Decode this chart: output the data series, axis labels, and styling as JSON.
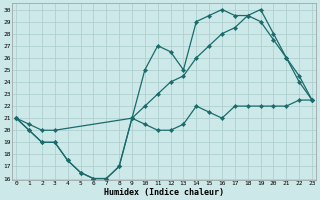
{
  "bg_color": "#cce8e8",
  "grid_color": "#aacccc",
  "line_color": "#1a6b6b",
  "xlabel": "Humidex (Indice chaleur)",
  "xlim": [
    0,
    23
  ],
  "ylim": [
    16,
    30
  ],
  "xticks": [
    0,
    1,
    2,
    3,
    4,
    5,
    6,
    7,
    8,
    9,
    10,
    11,
    12,
    13,
    14,
    15,
    16,
    17,
    18,
    19,
    20,
    21,
    22,
    23
  ],
  "yticks": [
    16,
    17,
    18,
    19,
    20,
    21,
    22,
    23,
    24,
    25,
    26,
    27,
    28,
    29,
    30
  ],
  "line1_x": [
    0,
    1,
    2,
    3,
    4,
    5,
    6,
    7,
    8,
    9,
    10,
    11,
    12,
    13,
    14,
    15,
    16,
    17,
    18,
    19,
    20,
    21,
    22,
    23
  ],
  "line1_y": [
    21,
    20,
    19,
    19,
    17.5,
    16.5,
    16,
    16,
    17,
    21,
    20.5,
    20,
    20,
    20.5,
    22,
    21.5,
    21,
    22,
    22,
    22,
    22,
    22,
    22.5,
    22.5
  ],
  "line2_x": [
    0,
    1,
    2,
    3,
    4,
    5,
    6,
    7,
    8,
    9,
    10,
    11,
    12,
    13,
    14,
    15,
    16,
    17,
    18,
    19,
    20,
    21,
    22,
    23
  ],
  "line2_y": [
    21,
    20,
    19,
    19,
    17.5,
    16.5,
    16,
    16,
    17,
    21,
    25,
    27,
    26.5,
    25,
    29,
    29.5,
    30,
    29.5,
    29.5,
    29,
    27.5,
    26,
    24,
    22.5
  ],
  "line3_x": [
    0,
    1,
    2,
    3,
    9,
    10,
    11,
    12,
    13,
    14,
    15,
    16,
    17,
    18,
    19,
    20,
    21,
    22,
    23
  ],
  "line3_y": [
    21,
    20.5,
    20,
    20,
    21,
    22,
    23,
    24,
    24.5,
    26,
    27,
    28,
    28.5,
    29.5,
    30,
    28,
    26,
    24.5,
    22.5
  ]
}
